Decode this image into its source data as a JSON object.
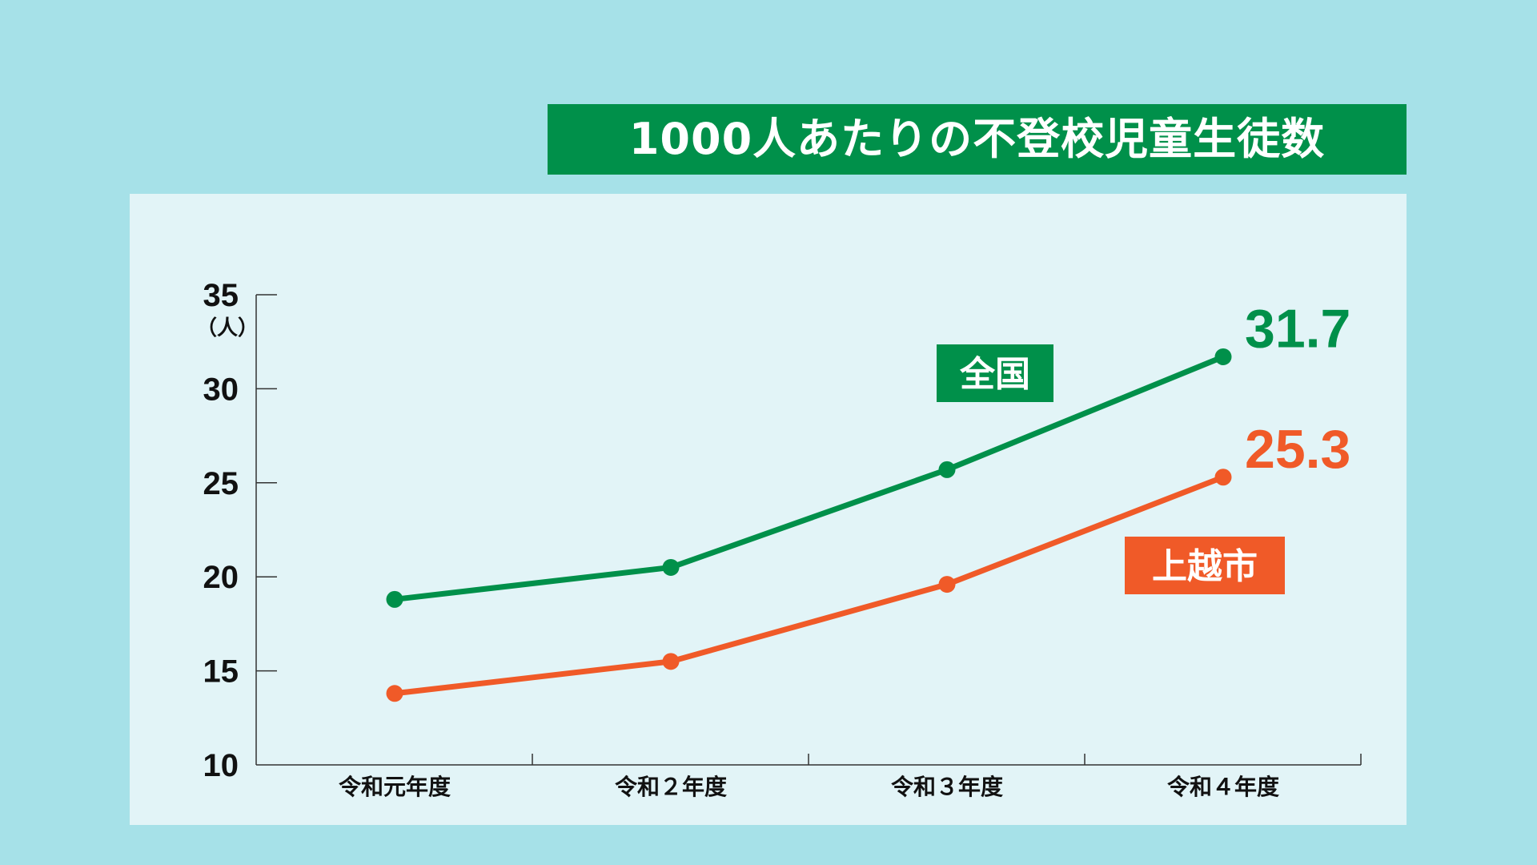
{
  "title": "1000人あたりの不登校児童生徒数",
  "colors": {
    "background": "#a6e1e8",
    "panel": "#e2f4f7",
    "title_bg": "#00904a",
    "national": "#00904a",
    "joetsu": "#f05a28",
    "axis": "#333333"
  },
  "chart_data": {
    "type": "line",
    "categories": [
      "令和元年度",
      "令和２年度",
      "令和３年度",
      "令和４年度"
    ],
    "ylim": [
      10,
      35
    ],
    "yticks": [
      10,
      15,
      20,
      25,
      30,
      35
    ],
    "ylabel": "（人）",
    "grid": false,
    "series": [
      {
        "name": "全国",
        "color": "#00904a",
        "values": [
          18.8,
          20.5,
          25.7,
          31.7
        ],
        "end_label": "31.7"
      },
      {
        "name": "上越市",
        "color": "#f05a28",
        "values": [
          13.8,
          15.5,
          19.6,
          25.3
        ],
        "end_label": "25.3"
      }
    ]
  }
}
